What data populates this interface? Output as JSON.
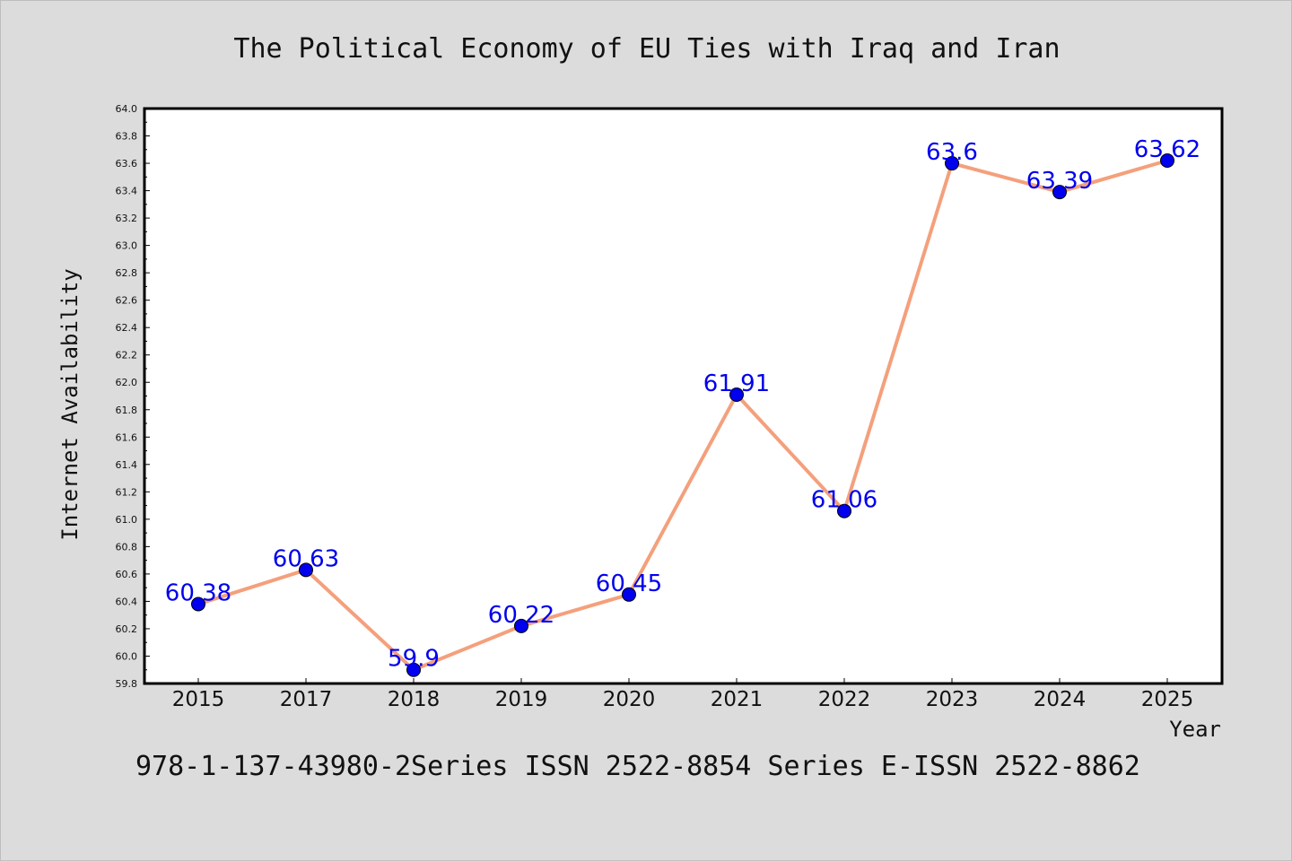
{
  "chart_data": {
    "type": "line",
    "title": "The Political Economy of EU Ties with Iraq and Iran",
    "xlabel": "Year",
    "ylabel": "Internet Availability",
    "categories": [
      "2015",
      "2017",
      "2018",
      "2019",
      "2020",
      "2021",
      "2022",
      "2023",
      "2024",
      "2025"
    ],
    "series": [
      {
        "values": [
          60.38,
          60.63,
          59.9,
          60.22,
          60.45,
          61.91,
          61.06,
          63.6,
          63.39,
          63.62
        ],
        "data_labels": [
          "60.38",
          "60.63",
          "59.9",
          "60.22",
          "60.45",
          "61.91",
          "61.06",
          "63.6",
          "63.39",
          "63.62"
        ],
        "line_color": "#f4a07c",
        "marker_color": "#0000ee"
      }
    ],
    "ylim": [
      59.8,
      64.0
    ],
    "yticks": [
      "59.8",
      "60.0",
      "60.2",
      "60.4",
      "60.6",
      "60.8",
      "61.0",
      "61.2",
      "61.4",
      "61.6",
      "61.8",
      "62.0",
      "62.2",
      "62.4",
      "62.6",
      "62.8",
      "63.0",
      "63.2",
      "63.4",
      "63.6",
      "63.8",
      "64.0"
    ],
    "grid": false,
    "legend": "none"
  },
  "footer": {
    "text": "978-1-137-43980-2Series ISSN 2522-8854 Series E-ISSN 2522-8862"
  },
  "colors": {
    "background": "#dcdcdc",
    "plot_background": "#ffffff",
    "label_color": "#0000ee"
  }
}
